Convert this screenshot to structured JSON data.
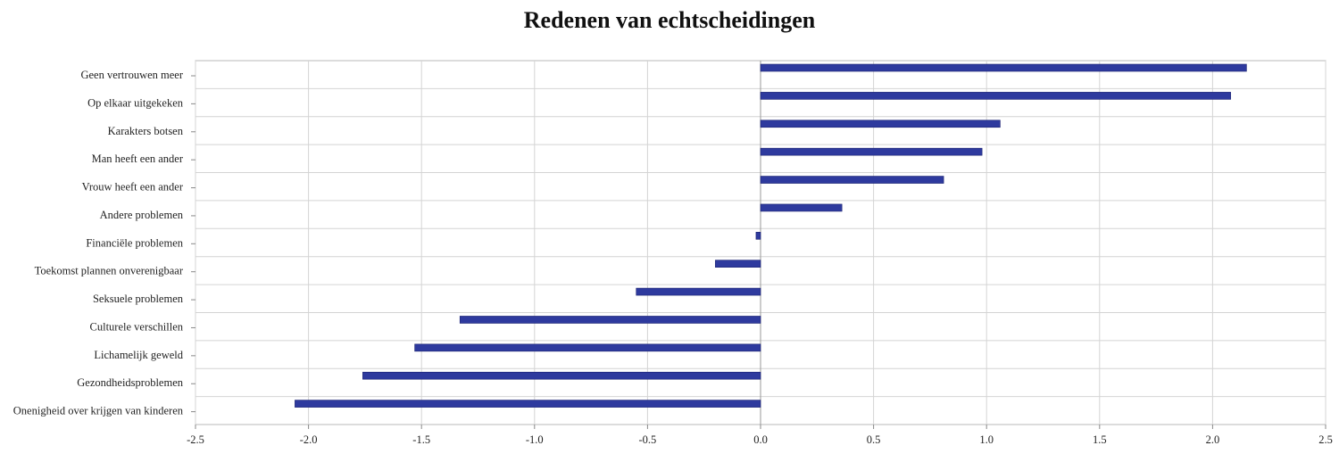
{
  "chart_data": {
    "type": "bar",
    "orientation": "horizontal",
    "title": "Redenen van echtscheidingen",
    "xlabel": "",
    "ylabel": "",
    "xlim": [
      -2.5,
      2.5
    ],
    "grid": true,
    "bar_color": "#2e3a9e",
    "categories": [
      "Geen vertrouwen meer",
      "Op elkaar uitgekeken",
      "Karakters botsen",
      "Man heeft een ander",
      "Vrouw heeft een ander",
      "Andere problemen",
      "Financiële problemen",
      "Toekomst plannen onverenigbaar",
      "Seksuele problemen",
      "Culturele verschillen",
      "Lichamelijk geweld",
      "Gezondheidsproblemen",
      "Onenigheid over krijgen van kinderen"
    ],
    "values": [
      2.15,
      2.08,
      1.06,
      0.98,
      0.81,
      0.36,
      -0.02,
      -0.2,
      -0.55,
      -1.33,
      -1.53,
      -1.76,
      -2.06
    ],
    "xticks": [
      "-2.5",
      "-2.0",
      "-1.5",
      "-1.0",
      "-0.5",
      "0.0",
      "0.5",
      "1.0",
      "1.5",
      "2.0",
      "2.5"
    ]
  }
}
